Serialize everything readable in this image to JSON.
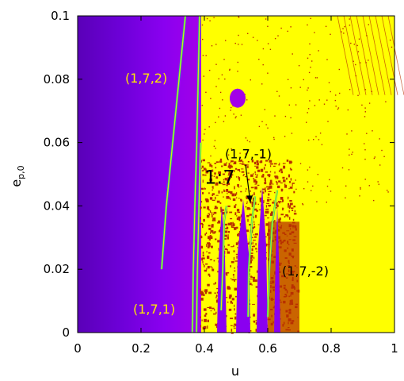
{
  "chart_data": {
    "type": "heatmap",
    "title": "",
    "xlabel": "u",
    "ylabel_main": "e",
    "ylabel_sub": "p,0",
    "xlim": [
      0,
      1
    ],
    "ylim": [
      0,
      0.1
    ],
    "x_ticks": [
      "0",
      "0.2",
      "0.4",
      "0.6",
      "0.8",
      "1"
    ],
    "y_ticks": [
      "0",
      "0.02",
      "0.04",
      "0.06",
      "0.08",
      "0.1"
    ],
    "grid": false,
    "legend": "none",
    "colors": {
      "dark_violet": "#5a00b8",
      "violet": "#8a00f0",
      "magenta_violet": "#a300e8",
      "yellow": "#ffff00",
      "red_brown": "#b83000",
      "curve_green": "#22e07a",
      "curve_yellow": "#ffe800"
    },
    "regions": [
      {
        "name": "chaotic-yellow",
        "u": [
          0.39,
          1.0
        ],
        "e": [
          0.0,
          0.1
        ]
      },
      {
        "name": "violet-regular",
        "u": [
          0.0,
          0.39
        ],
        "e": [
          0.0,
          0.1
        ]
      },
      {
        "name": "red-fringe",
        "u": [
          0.38,
          0.7
        ],
        "e": [
          0.0,
          0.055
        ]
      },
      {
        "name": "violet-island",
        "u": [
          0.48,
          0.53
        ],
        "e": [
          0.071,
          0.077
        ]
      }
    ],
    "curves": [
      {
        "resonance": "(1,7,2)",
        "points": [
          [
            0.265,
            0.02
          ],
          [
            0.28,
            0.04
          ],
          [
            0.3,
            0.06
          ],
          [
            0.32,
            0.08
          ],
          [
            0.34,
            0.1
          ]
        ]
      },
      {
        "resonance": "(1,7,1)",
        "points": [
          [
            0.362,
            0.0
          ],
          [
            0.365,
            0.02
          ],
          [
            0.37,
            0.04
          ],
          [
            0.376,
            0.06
          ],
          [
            0.385,
            0.1
          ]
        ]
      },
      {
        "resonance": "(1,7,1)",
        "points": [
          [
            0.375,
            0.0
          ],
          [
            0.378,
            0.02
          ],
          [
            0.383,
            0.04
          ],
          [
            0.388,
            0.06
          ]
        ]
      },
      {
        "resonance": "(1,7,-1)",
        "points": [
          [
            0.453,
            0.007
          ],
          [
            0.458,
            0.02
          ],
          [
            0.462,
            0.035
          ],
          [
            0.47,
            0.04
          ]
        ]
      },
      {
        "resonance": "(1,7,-1)",
        "points": [
          [
            0.538,
            0.005
          ],
          [
            0.54,
            0.02
          ],
          [
            0.55,
            0.035
          ],
          [
            0.56,
            0.043
          ]
        ]
      },
      {
        "resonance": "(1,7,-2)",
        "points": [
          [
            0.6,
            0.005
          ],
          [
            0.605,
            0.02
          ],
          [
            0.615,
            0.035
          ],
          [
            0.63,
            0.045
          ]
        ]
      }
    ],
    "annotations": [
      {
        "text": "(1,7,2)",
        "u": 0.15,
        "e": 0.079,
        "color": "#ffe800"
      },
      {
        "text": "(1,7,1)",
        "u": 0.175,
        "e": 0.006,
        "color": "#ffe800"
      },
      {
        "text": "(1,7,-1)",
        "u": 0.465,
        "e": 0.055,
        "color": "#000000"
      },
      {
        "text": "(1,7,-2)",
        "u": 0.645,
        "e": 0.018,
        "color": "#000000"
      },
      {
        "text": "1:7",
        "u": 0.4,
        "e": 0.047,
        "color": "#000000",
        "big": true
      }
    ],
    "arrow": {
      "from": [
        0.53,
        0.053
      ],
      "to": [
        0.545,
        0.041
      ]
    }
  }
}
